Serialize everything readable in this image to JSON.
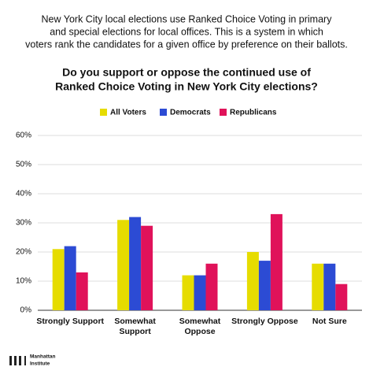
{
  "intro": [
    "New York City local elections use Ranked Choice Voting in primary",
    "and special elections for local offices. This is a system in which",
    "voters rank the candidates for a given office by preference on their ballots."
  ],
  "chart_data": {
    "type": "bar",
    "title": [
      "Do you support or oppose the continued use of",
      "Ranked Choice Voting in New York City elections?"
    ],
    "categories": [
      "Strongly Support",
      "Somewhat\nSupport",
      "Somewhat\nOppose",
      "Strongly Oppose",
      "Not Sure"
    ],
    "series": [
      {
        "name": "All Voters",
        "color": "#e6dc00",
        "values": [
          21,
          31,
          12,
          20,
          16
        ]
      },
      {
        "name": "Democrats",
        "color": "#2c4bd4",
        "values": [
          22,
          32,
          12,
          17,
          16
        ]
      },
      {
        "name": "Republicans",
        "color": "#e0125a",
        "values": [
          13,
          29,
          16,
          33,
          9
        ]
      }
    ],
    "ylim": [
      0,
      60
    ],
    "yticks": [
      {
        "value": 0,
        "label": "0%"
      },
      {
        "value": 10,
        "label": "10%"
      },
      {
        "value": 20,
        "label": "20%"
      },
      {
        "value": 30,
        "label": "30%"
      },
      {
        "value": 40,
        "label": "40%"
      },
      {
        "value": 50,
        "label": "50%"
      },
      {
        "value": 60,
        "label": "60%"
      }
    ],
    "grid": true,
    "legend": "top"
  },
  "footer": [
    "Manhattan",
    "Institute"
  ]
}
